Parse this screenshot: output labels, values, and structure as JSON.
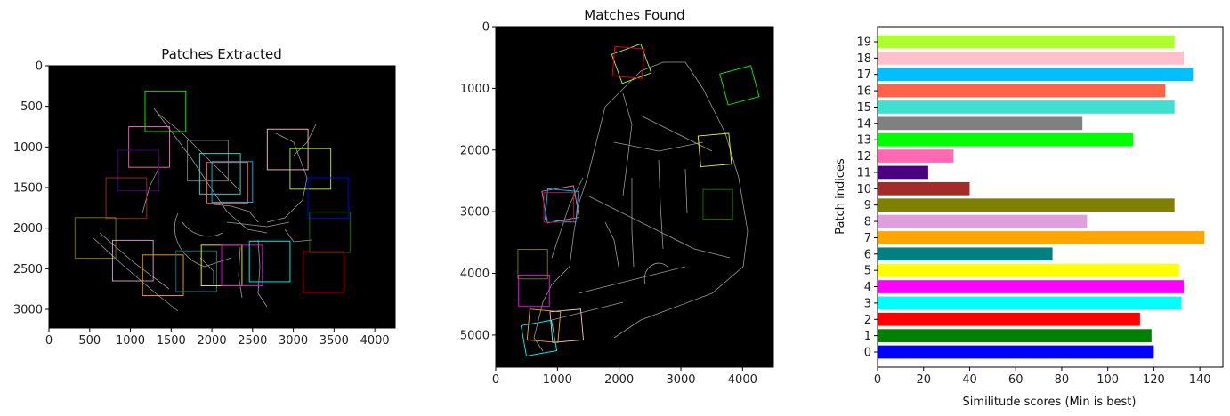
{
  "chart_data": [
    {
      "type": "image-with-overlays",
      "title": "Patches Extracted",
      "xlim": [
        0,
        4250
      ],
      "ylim": [
        3230,
        0
      ],
      "xticks": [
        0,
        500,
        1000,
        1500,
        2000,
        2500,
        3000,
        3500,
        4000
      ],
      "yticks": [
        0,
        500,
        1000,
        1500,
        2000,
        2500,
        3000
      ],
      "background": "#000000",
      "patches": [
        {
          "x": 1180,
          "y": 310,
          "w": 500,
          "h": 500,
          "color": "#00ff00"
        },
        {
          "x": 980,
          "y": 750,
          "w": 500,
          "h": 500,
          "color": "#ff69b4"
        },
        {
          "x": 850,
          "y": 1040,
          "w": 500,
          "h": 500,
          "color": "#4b0082"
        },
        {
          "x": 700,
          "y": 1380,
          "w": 500,
          "h": 500,
          "color": "#a52a2a"
        },
        {
          "x": 1700,
          "y": 920,
          "w": 500,
          "h": 500,
          "color": "#808080"
        },
        {
          "x": 1850,
          "y": 1080,
          "w": 500,
          "h": 500,
          "color": "#40e0d0"
        },
        {
          "x": 1940,
          "y": 1190,
          "w": 500,
          "h": 500,
          "color": "#ff6347"
        },
        {
          "x": 2000,
          "y": 1180,
          "w": 500,
          "h": 500,
          "color": "#00bfff"
        },
        {
          "x": 2680,
          "y": 780,
          "w": 500,
          "h": 500,
          "color": "#ffc0cb"
        },
        {
          "x": 2960,
          "y": 1020,
          "w": 500,
          "h": 500,
          "color": "#adff2f"
        },
        {
          "x": 3180,
          "y": 1380,
          "w": 500,
          "h": 500,
          "color": "#0000ff"
        },
        {
          "x": 3200,
          "y": 1800,
          "w": 500,
          "h": 500,
          "color": "#008000"
        },
        {
          "x": 320,
          "y": 1870,
          "w": 500,
          "h": 500,
          "color": "#808000"
        },
        {
          "x": 780,
          "y": 2150,
          "w": 500,
          "h": 500,
          "color": "#dda0dd"
        },
        {
          "x": 1150,
          "y": 2330,
          "w": 500,
          "h": 500,
          "color": "#ffa500"
        },
        {
          "x": 1560,
          "y": 2280,
          "w": 500,
          "h": 500,
          "color": "#008080"
        },
        {
          "x": 1870,
          "y": 2210,
          "w": 500,
          "h": 500,
          "color": "#ffff00"
        },
        {
          "x": 2120,
          "y": 2210,
          "w": 500,
          "h": 500,
          "color": "#ff00ff"
        },
        {
          "x": 2460,
          "y": 2160,
          "w": 500,
          "h": 500,
          "color": "#00ffff"
        },
        {
          "x": 3120,
          "y": 2290,
          "w": 500,
          "h": 500,
          "color": "#ff0000"
        }
      ]
    },
    {
      "type": "image-with-overlays",
      "title": "Matches Found",
      "xlim": [
        0,
        4500
      ],
      "ylim": [
        5520,
        0
      ],
      "xticks": [
        0,
        1000,
        2000,
        3000,
        4000
      ],
      "yticks": [
        0,
        1000,
        2000,
        3000,
        4000,
        5000
      ],
      "background": "#000000",
      "patches": [
        {
          "cx": 2200,
          "cy": 600,
          "s": 500,
          "rot": -20,
          "color": "#adff2f"
        },
        {
          "cx": 2150,
          "cy": 580,
          "s": 480,
          "rot": 5,
          "color": "#ff0000"
        },
        {
          "cx": 3950,
          "cy": 950,
          "s": 520,
          "rot": -15,
          "color": "#00ff00"
        },
        {
          "cx": 3550,
          "cy": 2000,
          "s": 500,
          "rot": -5,
          "color": "#ffff00"
        },
        {
          "cx": 3600,
          "cy": 2880,
          "s": 480,
          "rot": 0,
          "color": "#008000"
        },
        {
          "cx": 1050,
          "cy": 2880,
          "s": 520,
          "rot": -10,
          "color": "#ff69b4"
        },
        {
          "cx": 1070,
          "cy": 2900,
          "s": 500,
          "rot": 5,
          "color": "#00bfff"
        },
        {
          "cx": 1020,
          "cy": 2930,
          "s": 480,
          "rot": 0,
          "color": "#a52a2a"
        },
        {
          "cx": 600,
          "cy": 3850,
          "s": 480,
          "rot": 0,
          "color": "#808000"
        },
        {
          "cx": 620,
          "cy": 4280,
          "s": 500,
          "rot": 0,
          "color": "#ff00ff"
        },
        {
          "cx": 780,
          "cy": 4850,
          "s": 500,
          "rot": 5,
          "color": "#ffa500"
        },
        {
          "cx": 1150,
          "cy": 4850,
          "s": 500,
          "rot": -5,
          "color": "#ffc0cb"
        },
        {
          "cx": 700,
          "cy": 5050,
          "s": 500,
          "rot": -10,
          "color": "#00ffff"
        }
      ]
    },
    {
      "type": "bar",
      "orientation": "horizontal",
      "xlabel": "Similitude scores (Min is best)",
      "ylabel": "Patch indices",
      "xlim": [
        0,
        150
      ],
      "xticks": [
        0,
        20,
        40,
        60,
        80,
        100,
        120,
        140
      ],
      "categories": [
        "0",
        "1",
        "2",
        "3",
        "4",
        "5",
        "6",
        "7",
        "8",
        "9",
        "10",
        "11",
        "12",
        "13",
        "14",
        "15",
        "16",
        "17",
        "18",
        "19"
      ],
      "values": [
        120,
        119,
        114,
        132,
        133,
        131,
        76,
        142,
        91,
        129,
        40,
        22,
        33,
        111,
        89,
        129,
        125,
        137,
        133,
        129
      ],
      "colors": [
        "#0000ff",
        "#008000",
        "#ff0000",
        "#00ffff",
        "#ff00ff",
        "#ffff00",
        "#008080",
        "#ffa500",
        "#dda0dd",
        "#808000",
        "#a52a2a",
        "#4b0082",
        "#ff69b4",
        "#00ff00",
        "#808080",
        "#40e0d0",
        "#ff6347",
        "#00bfff",
        "#ffc0cb",
        "#adff2f"
      ]
    }
  ]
}
